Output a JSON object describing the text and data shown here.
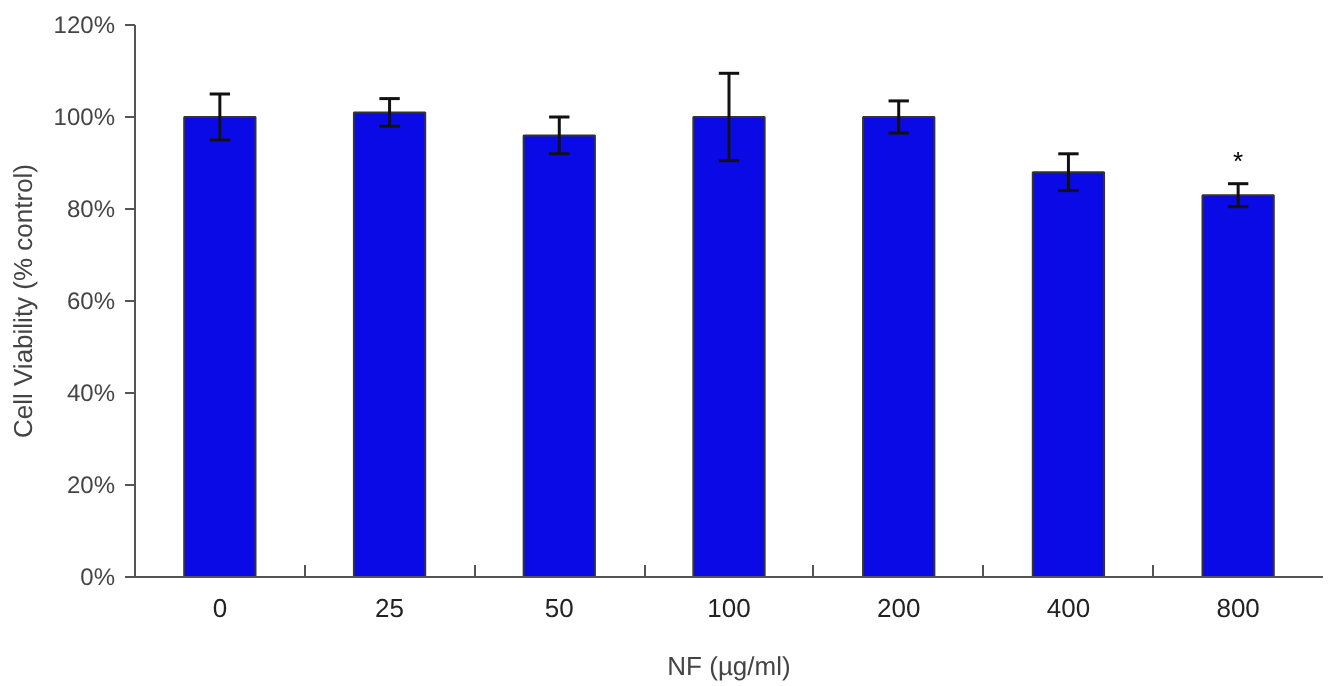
{
  "chart_data": {
    "type": "bar",
    "xlabel": "NF (µg/ml)",
    "ylabel": "Cell Viability (% control)",
    "categories": [
      "0",
      "25",
      "50",
      "100",
      "200",
      "400",
      "800"
    ],
    "values": [
      100,
      101,
      96,
      100,
      100,
      88,
      83
    ],
    "errors": [
      5,
      3,
      4,
      9.5,
      3.5,
      4,
      2.5
    ],
    "color": "#0a0ae6",
    "ylim": [
      0,
      120
    ],
    "yticks": [
      {
        "value": 0,
        "label": "0%"
      },
      {
        "value": 20,
        "label": "20%"
      },
      {
        "value": 40,
        "label": "40%"
      },
      {
        "value": 60,
        "label": "60%"
      },
      {
        "value": 80,
        "label": "80%"
      },
      {
        "value": 100,
        "label": "100%"
      },
      {
        "value": 120,
        "label": "120%"
      }
    ],
    "annotations": [
      "*"
    ],
    "grid": false
  }
}
